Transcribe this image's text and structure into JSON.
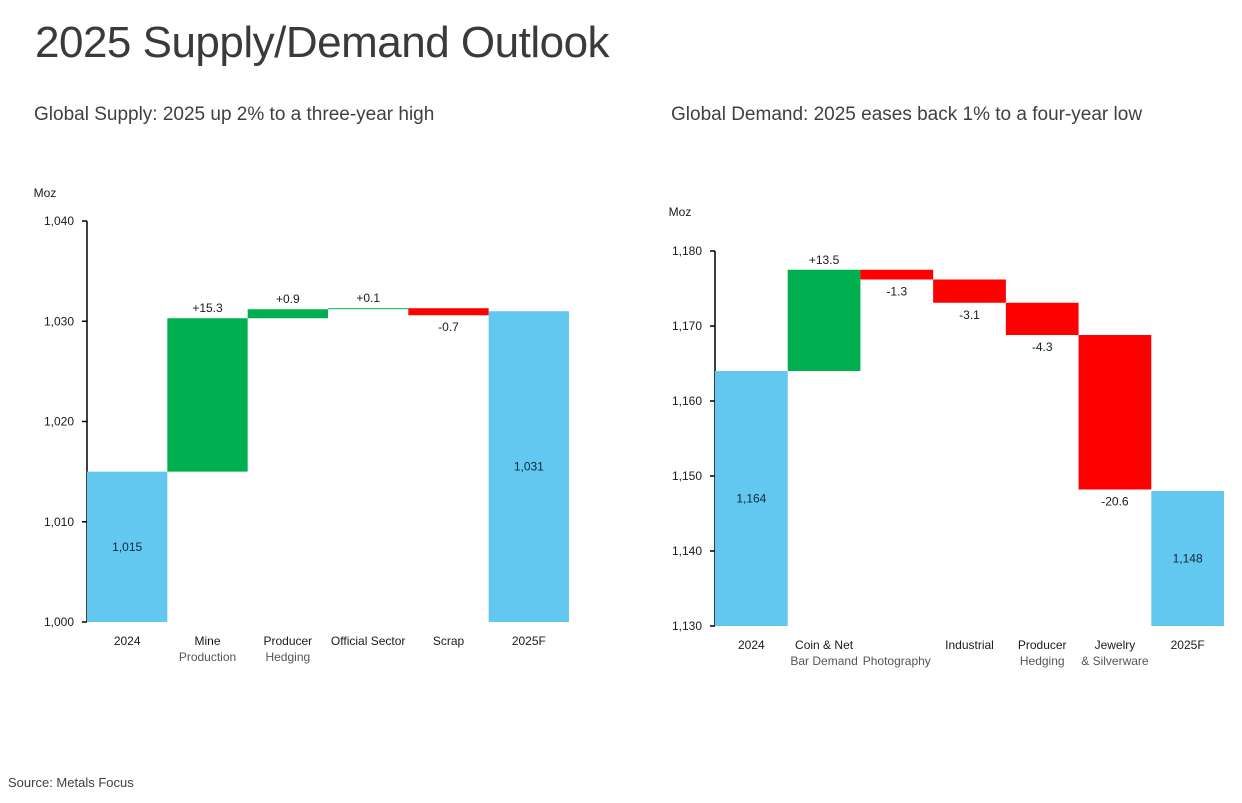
{
  "page": {
    "title": "2025 Supply/Demand Outlook",
    "source": "Source: Metals Focus"
  },
  "colors": {
    "total": "#63c8f0",
    "increase": "#00b050",
    "decrease": "#ff0000",
    "axis": "#000000",
    "text": "#1a1a1a"
  },
  "chart_data": [
    {
      "type": "bar",
      "subtype": "waterfall",
      "title": "Global Supply: 2025 up 2% to a three-year high",
      "ylabel": "Moz",
      "xlabel": "",
      "ylim": [
        1000,
        1040
      ],
      "yticks": [
        1000,
        1010,
        1020,
        1030,
        1040
      ],
      "ytick_labels": [
        "1,000",
        "1,010",
        "1,020",
        "1,030",
        "1,040"
      ],
      "grid": false,
      "legend": "none",
      "categories": [
        [
          "2024"
        ],
        [
          "Mine",
          "Production"
        ],
        [
          "Producer",
          "Hedging"
        ],
        [
          "Official Sector"
        ],
        [
          "Scrap"
        ],
        [
          "2025F"
        ]
      ],
      "kinds": [
        "total",
        "delta",
        "delta",
        "delta",
        "delta",
        "total"
      ],
      "values": [
        1015,
        15.3,
        0.9,
        0.1,
        -0.7,
        1031
      ],
      "data_labels": [
        "1,015",
        "+15.3",
        "+0.9",
        "+0.1",
        "-0.7",
        "1,031"
      ]
    },
    {
      "type": "bar",
      "subtype": "waterfall",
      "title": "Global Demand: 2025 eases back 1% to a four-year low",
      "ylabel": "Moz",
      "xlabel": "",
      "ylim": [
        1130,
        1180
      ],
      "yticks": [
        1130,
        1140,
        1150,
        1160,
        1170,
        1180
      ],
      "ytick_labels": [
        "1,130",
        "1,140",
        "1,150",
        "1,160",
        "1,170",
        "1,180"
      ],
      "grid": false,
      "legend": "none",
      "categories": [
        [
          "2024"
        ],
        [
          "Coin & Net",
          "Bar Demand"
        ],
        [
          "",
          "Photography"
        ],
        [
          "Industrial"
        ],
        [
          "Producer",
          "Hedging"
        ],
        [
          "Jewelry",
          "& Silverware"
        ],
        [
          "2025F"
        ]
      ],
      "kinds": [
        "total",
        "delta",
        "delta",
        "delta",
        "delta",
        "delta",
        "total"
      ],
      "values": [
        1164,
        13.5,
        -1.3,
        -3.1,
        -4.3,
        -20.6,
        1148
      ],
      "data_labels": [
        "1,164",
        "+13.5",
        "-1.3",
        "-3.1",
        "-4.3",
        "-20.6",
        "1,148"
      ]
    }
  ]
}
